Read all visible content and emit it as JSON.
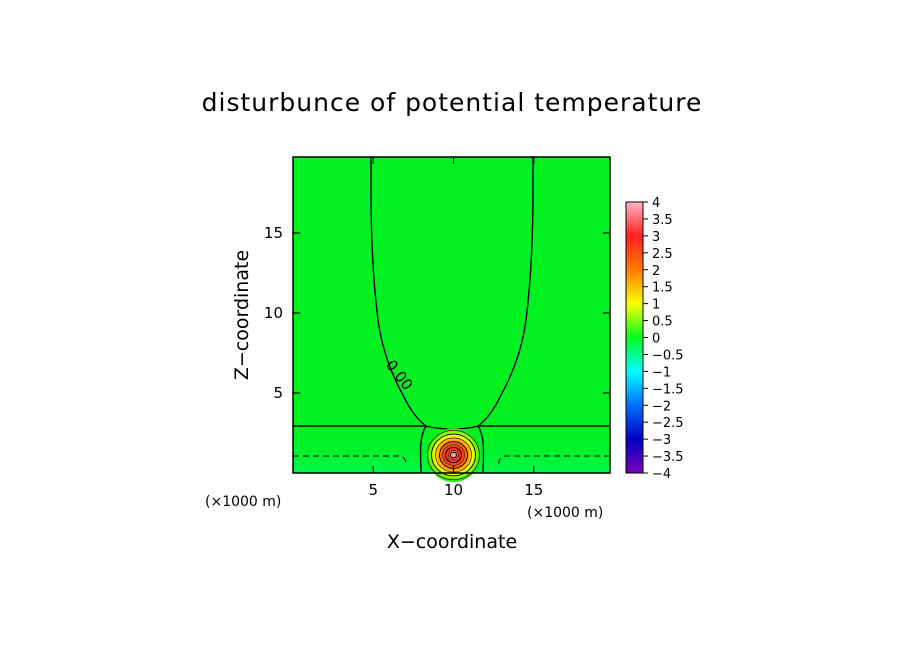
{
  "chart_data": {
    "type": "heatmap",
    "title": "disturbunce of potential temperature",
    "xlabel": "X−coordinate",
    "ylabel": "Z−coordinate",
    "x_unit": "(×1000 m)",
    "z_unit": "(×1000 m)",
    "xlim": [
      0,
      19.75
    ],
    "zlim": [
      0,
      19.75
    ],
    "x_ticks": [
      5,
      10,
      15
    ],
    "z_ticks": [
      5,
      10,
      15
    ],
    "contour_label": "0.00",
    "warm_bubble": {
      "center_x": 10,
      "center_z": 1,
      "max": 4
    },
    "colorbar": {
      "min": -4,
      "max": 4,
      "tick_labels": [
        "4",
        "3.5",
        "3",
        "2.5",
        "2",
        "1.5",
        "1",
        "0.5",
        "0",
        "−0.5",
        "−1",
        "−1.5",
        "−2",
        "−2.5",
        "−3",
        "−3.5",
        "−4"
      ],
      "colors": [
        "#ffb6c1",
        "#ff2020",
        "#ff7a00",
        "#ffff00",
        "#00ff20",
        "#00ffff",
        "#0070ff",
        "#0000c0",
        "#7a00c0"
      ]
    },
    "colors": {
      "field": "#00f020",
      "background": "#ffffff"
    }
  }
}
